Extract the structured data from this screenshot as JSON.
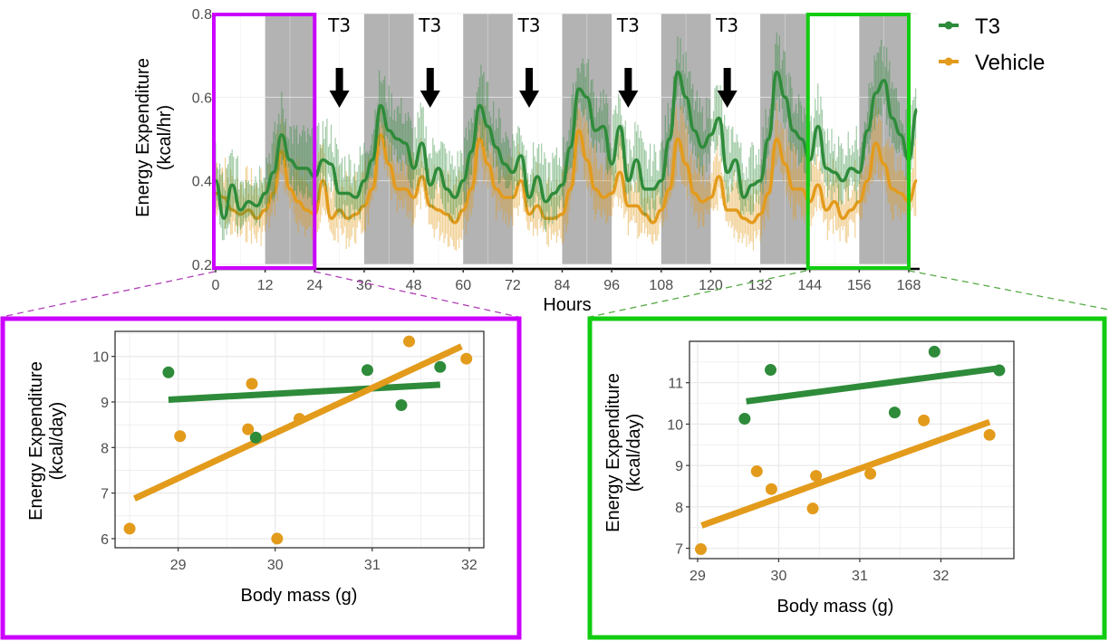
{
  "colors": {
    "t3": "#2e8b3a",
    "vehicle": "#e39b1c",
    "dark_phase": "#b3b3b3",
    "highlight_first_day": "#cc00ff",
    "highlight_last_day": "#11cc11",
    "grid": "#ebebeb",
    "axis": "#000000"
  },
  "legend": {
    "items": [
      {
        "label": "T3",
        "color_key": "t3"
      },
      {
        "label": "Vehicle",
        "color_key": "vehicle"
      }
    ]
  },
  "chart_data": [
    {
      "type": "line",
      "title": "",
      "xlabel": "Hours",
      "ylabel_line1": "Energy Expenditure",
      "ylabel_line2": "(kcal/hr)",
      "xlim": [
        0,
        168
      ],
      "ylim": [
        0.2,
        0.8
      ],
      "x_ticks": [
        0,
        12,
        24,
        36,
        48,
        60,
        72,
        84,
        96,
        108,
        120,
        132,
        144,
        156,
        168
      ],
      "y_ticks": [
        0.2,
        0.4,
        0.6,
        0.8
      ],
      "y_tick_labels": [
        "0.2",
        "0.4",
        "0.6",
        "0.8"
      ],
      "grid": true,
      "legend_position": "right",
      "dark_phases": [
        [
          12,
          24
        ],
        [
          36,
          48
        ],
        [
          60,
          72
        ],
        [
          84,
          96
        ],
        [
          108,
          120
        ],
        [
          132,
          144
        ],
        [
          156,
          168
        ]
      ],
      "annotations": [
        {
          "text": "T3",
          "x": 30,
          "arrow": true
        },
        {
          "text": "T3",
          "x": 52,
          "arrow": true
        },
        {
          "text": "T3",
          "x": 76,
          "arrow": true
        },
        {
          "text": "T3",
          "x": 100,
          "arrow": true
        },
        {
          "text": "T3",
          "x": 124,
          "arrow": true
        }
      ],
      "highlight_windows": [
        {
          "name": "first-day",
          "range": [
            0,
            24
          ],
          "color_key": "highlight_first_day"
        },
        {
          "name": "last-day",
          "range": [
            144,
            168
          ],
          "color_key": "highlight_last_day"
        }
      ],
      "x_step_hours": 2,
      "series": [
        {
          "name": "T3",
          "color_key": "t3",
          "values": [
            0.4,
            0.31,
            0.39,
            0.33,
            0.35,
            0.34,
            0.37,
            0.42,
            0.51,
            0.45,
            0.43,
            0.43,
            0.41,
            0.45,
            0.44,
            0.37,
            0.37,
            0.36,
            0.4,
            0.45,
            0.58,
            0.52,
            0.5,
            0.49,
            0.43,
            0.49,
            0.39,
            0.43,
            0.38,
            0.36,
            0.4,
            0.47,
            0.58,
            0.53,
            0.48,
            0.44,
            0.42,
            0.46,
            0.36,
            0.41,
            0.35,
            0.37,
            0.39,
            0.48,
            0.62,
            0.6,
            0.52,
            0.53,
            0.44,
            0.53,
            0.4,
            0.45,
            0.38,
            0.38,
            0.4,
            0.5,
            0.66,
            0.6,
            0.52,
            0.48,
            0.51,
            0.55,
            0.42,
            0.45,
            0.36,
            0.39,
            0.4,
            0.5,
            0.66,
            0.6,
            0.52,
            0.5,
            0.45,
            0.53,
            0.43,
            0.42,
            0.4,
            0.43,
            0.42,
            0.52,
            0.61,
            0.64,
            0.55,
            0.51,
            0.45,
            0.57
          ]
        },
        {
          "name": "Vehicle",
          "color_key": "vehicle",
          "values": [
            0.37,
            0.36,
            0.33,
            0.32,
            0.33,
            0.31,
            0.33,
            0.37,
            0.47,
            0.38,
            0.35,
            0.33,
            0.32,
            0.4,
            0.31,
            0.33,
            0.31,
            0.32,
            0.34,
            0.38,
            0.51,
            0.44,
            0.38,
            0.38,
            0.36,
            0.41,
            0.34,
            0.33,
            0.32,
            0.3,
            0.33,
            0.38,
            0.5,
            0.44,
            0.38,
            0.36,
            0.36,
            0.4,
            0.32,
            0.34,
            0.31,
            0.31,
            0.32,
            0.38,
            0.52,
            0.45,
            0.38,
            0.36,
            0.37,
            0.42,
            0.34,
            0.34,
            0.32,
            0.3,
            0.33,
            0.38,
            0.5,
            0.44,
            0.37,
            0.35,
            0.36,
            0.41,
            0.33,
            0.33,
            0.31,
            0.3,
            0.32,
            0.37,
            0.5,
            0.44,
            0.38,
            0.38,
            0.35,
            0.39,
            0.33,
            0.35,
            0.31,
            0.33,
            0.35,
            0.4,
            0.49,
            0.44,
            0.38,
            0.37,
            0.35,
            0.4
          ]
        }
      ]
    },
    {
      "type": "scatter",
      "panel": "first-day",
      "xlabel": "Body mass (g)",
      "ylabel_line1": "Energy Expenditure",
      "ylabel_line2": "(kcal/day)",
      "xlim": [
        28.35,
        32.15
      ],
      "ylim": [
        5.8,
        10.55
      ],
      "x_ticks": [
        29,
        30,
        31,
        32
      ],
      "y_ticks": [
        6,
        7,
        8,
        9,
        10
      ],
      "grid": true,
      "series": [
        {
          "name": "T3",
          "color_key": "t3",
          "points": [
            [
              28.9,
              9.65
            ],
            [
              29.8,
              8.22
            ],
            [
              30.95,
              9.7
            ],
            [
              31.3,
              8.93
            ],
            [
              31.7,
              9.77
            ]
          ],
          "fit": [
            [
              28.9,
              9.05
            ],
            [
              31.7,
              9.38
            ]
          ]
        },
        {
          "name": "Vehicle",
          "color_key": "vehicle",
          "points": [
            [
              28.5,
              6.22
            ],
            [
              29.02,
              8.25
            ],
            [
              29.72,
              8.4
            ],
            [
              29.76,
              9.4
            ],
            [
              30.02,
              6.0
            ],
            [
              30.25,
              8.63
            ],
            [
              31.38,
              10.33
            ],
            [
              31.97,
              9.95
            ]
          ],
          "fit": [
            [
              28.55,
              6.88
            ],
            [
              31.92,
              10.22
            ]
          ]
        }
      ]
    },
    {
      "type": "scatter",
      "panel": "last-day",
      "xlabel": "Body mass (g)",
      "ylabel_line1": "Energy Expenditure",
      "ylabel_line2": "(kcal/day)",
      "xlim": [
        28.9,
        32.9
      ],
      "ylim": [
        6.75,
        12.0
      ],
      "x_ticks": [
        29,
        30,
        31,
        32
      ],
      "y_ticks": [
        7,
        8,
        9,
        10,
        11
      ],
      "grid": true,
      "series": [
        {
          "name": "T3",
          "color_key": "t3",
          "points": [
            [
              29.58,
              10.13
            ],
            [
              29.9,
              11.31
            ],
            [
              31.43,
              10.28
            ],
            [
              31.92,
              11.75
            ],
            [
              32.72,
              11.3
            ]
          ],
          "fit": [
            [
              29.6,
              10.55
            ],
            [
              32.72,
              11.35
            ]
          ]
        },
        {
          "name": "Vehicle",
          "color_key": "vehicle",
          "points": [
            [
              29.04,
              6.98
            ],
            [
              29.73,
              8.86
            ],
            [
              29.91,
              8.43
            ],
            [
              30.42,
              7.96
            ],
            [
              30.46,
              8.75
            ],
            [
              31.13,
              8.8
            ],
            [
              31.79,
              10.09
            ],
            [
              32.6,
              9.74
            ]
          ],
          "fit": [
            [
              29.05,
              7.55
            ],
            [
              32.6,
              10.05
            ]
          ]
        }
      ]
    }
  ]
}
